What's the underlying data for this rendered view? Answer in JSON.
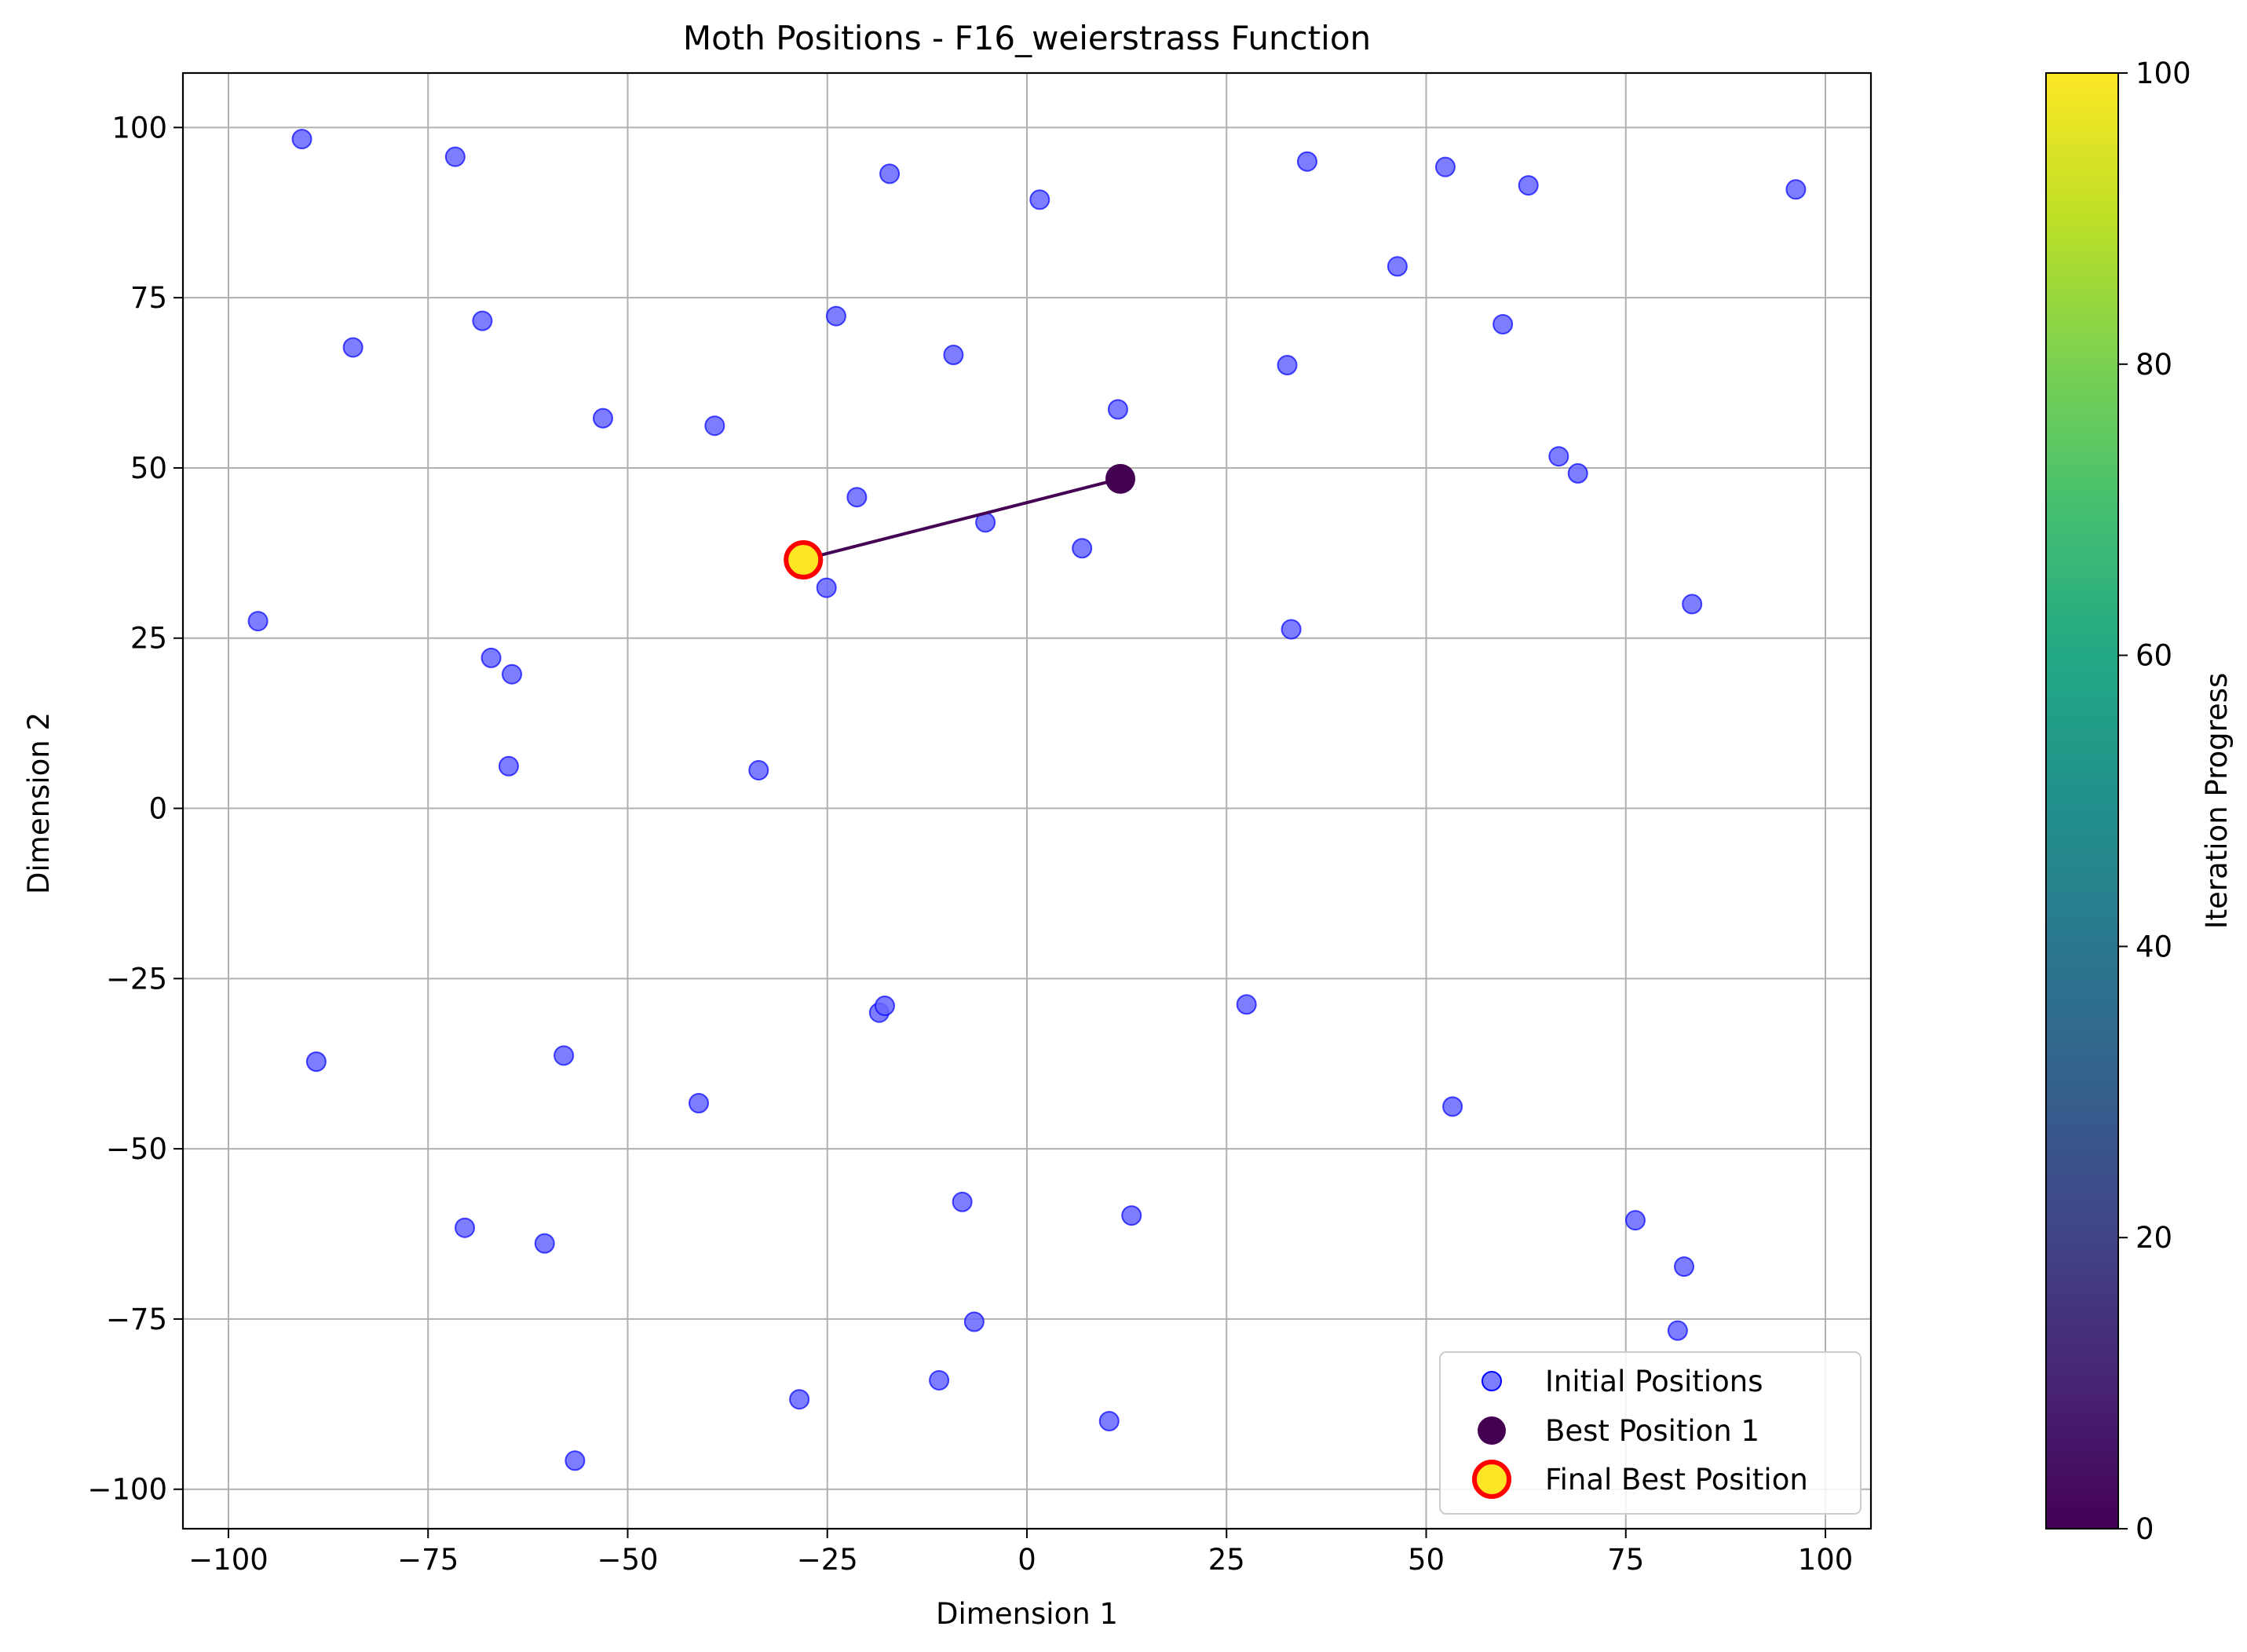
{
  "chart_data": {
    "type": "scatter",
    "title": "Moth Positions - F16_weierstrass Function",
    "xlabel": "Dimension 1",
    "ylabel": "Dimension 2",
    "xlim": [
      -105.7,
      105.7
    ],
    "ylim": [
      -105.8,
      108.0
    ],
    "xticks": [
      -100,
      -75,
      -50,
      -25,
      0,
      25,
      50,
      75,
      100
    ],
    "yticks": [
      -100,
      -75,
      -50,
      -25,
      0,
      25,
      50,
      75,
      100
    ],
    "grid": true,
    "legend_position": "lower right",
    "colorbar": {
      "label": "Iteration Progress",
      "range": [
        0,
        100
      ],
      "ticks": [
        0,
        20,
        40,
        60,
        80,
        100
      ],
      "colormap": "viridis"
    },
    "series": [
      {
        "name": "Initial Positions",
        "color": "#6666ff",
        "points": [
          [
            -90.8,
            98.3
          ],
          [
            -71.6,
            95.7
          ],
          [
            -17.2,
            93.2
          ],
          [
            1.6,
            89.4
          ],
          [
            35.1,
            95.0
          ],
          [
            52.4,
            94.2
          ],
          [
            62.8,
            91.5
          ],
          [
            96.3,
            90.9
          ],
          [
            -84.4,
            67.7
          ],
          [
            -68.2,
            71.6
          ],
          [
            -23.9,
            72.3
          ],
          [
            -9.2,
            66.6
          ],
          [
            11.4,
            58.6
          ],
          [
            32.6,
            65.1
          ],
          [
            46.4,
            79.6
          ],
          [
            59.6,
            71.1
          ],
          [
            -53.1,
            57.3
          ],
          [
            -39.1,
            56.2
          ],
          [
            -21.3,
            45.7
          ],
          [
            -5.2,
            42.0
          ],
          [
            6.9,
            38.2
          ],
          [
            66.6,
            51.7
          ],
          [
            69.0,
            49.2
          ],
          [
            -96.3,
            27.5
          ],
          [
            -67.1,
            22.1
          ],
          [
            -64.5,
            19.7
          ],
          [
            -25.1,
            32.4
          ],
          [
            33.1,
            26.3
          ],
          [
            83.3,
            30.0
          ],
          [
            -64.9,
            6.2
          ],
          [
            -33.6,
            5.6
          ],
          [
            -89.0,
            -37.2
          ],
          [
            -58.0,
            -36.3
          ],
          [
            -41.1,
            -43.3
          ],
          [
            -18.5,
            -30.0
          ],
          [
            -17.8,
            -29.0
          ],
          [
            27.5,
            -28.8
          ],
          [
            53.3,
            -43.8
          ],
          [
            -70.4,
            -61.6
          ],
          [
            -60.4,
            -63.9
          ],
          [
            -8.1,
            -57.8
          ],
          [
            13.1,
            -59.8
          ],
          [
            76.2,
            -60.5
          ],
          [
            82.3,
            -67.3
          ],
          [
            -6.6,
            -75.4
          ],
          [
            81.5,
            -76.7
          ],
          [
            -28.5,
            -86.8
          ],
          [
            -11.0,
            -84.0
          ],
          [
            10.3,
            -90.0
          ],
          [
            -56.6,
            -95.8
          ]
        ]
      },
      {
        "name": "Best Position 1",
        "color": "#440154",
        "points": [
          [
            11.7,
            48.4
          ]
        ]
      },
      {
        "name": "Final Best Position",
        "color": "#fde725",
        "edge_color": "#ff0000",
        "points": [
          [
            -28.0,
            36.5
          ]
        ]
      }
    ],
    "arrow": {
      "from": [
        11.7,
        48.4
      ],
      "to": [
        -28.0,
        36.5
      ],
      "color": "#440154"
    }
  }
}
